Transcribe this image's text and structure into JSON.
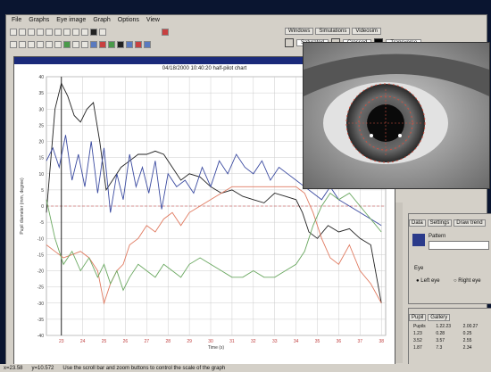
{
  "menu": [
    "File",
    "Graphs",
    "Eye image",
    "Graph",
    "Options",
    "View"
  ],
  "tabs": [
    "Windows",
    "Simulations",
    "Videosim"
  ],
  "swatches": [
    {
      "label": "Saturated",
      "color": "#ffffff"
    },
    {
      "label": "Crossed",
      "color": "#ffffff"
    },
    {
      "label": "Transverse",
      "color": "#000000"
    }
  ],
  "chart": {
    "header": "04/18/2000 10:40:20  half-pilot chart",
    "ylabel": "Pupil diameter (mm, degree)",
    "xlabel": "Time (s)"
  },
  "chart_data": {
    "type": "line",
    "ylim": [
      -40,
      40
    ],
    "yticks": [
      40,
      35,
      30,
      25,
      20,
      15,
      10,
      5,
      0,
      -5,
      -10,
      -15,
      -20,
      -25,
      -30,
      -35,
      -40
    ],
    "xticks": [
      "23",
      "24",
      "25",
      "26",
      "27",
      "28",
      "29",
      "30",
      "31",
      "32",
      "33",
      "34",
      "35",
      "36",
      "37",
      "38"
    ],
    "xrange": [
      22.3,
      38.2
    ],
    "series": [
      {
        "color": "#222222",
        "x": [
          22.3,
          22.7,
          23.0,
          23.3,
          23.6,
          23.9,
          24.2,
          24.5,
          24.8,
          25.1,
          25.4,
          25.8,
          26.2,
          26.6,
          27.0,
          27.4,
          27.8,
          28.2,
          28.6,
          29.0,
          29.5,
          30.0,
          30.5,
          31.0,
          31.5,
          32.0,
          32.5,
          33.0,
          33.5,
          34.0,
          34.3,
          34.6,
          35.0,
          35.5,
          36.0,
          36.5,
          37.0,
          37.5,
          38.0
        ],
        "y": [
          -2,
          30,
          38,
          34,
          28,
          26,
          30,
          32,
          20,
          5,
          8,
          12,
          14,
          16,
          16,
          17,
          16,
          12,
          8,
          10,
          9,
          6,
          4,
          5,
          3,
          2,
          1,
          4,
          3,
          2,
          -2,
          -8,
          -10,
          -6,
          -8,
          -7,
          -10,
          -12,
          -30
        ]
      },
      {
        "color": "#3a4aa0",
        "x": [
          22.3,
          22.6,
          22.9,
          23.2,
          23.5,
          23.8,
          24.1,
          24.4,
          24.7,
          25.0,
          25.3,
          25.6,
          25.9,
          26.2,
          26.5,
          26.8,
          27.1,
          27.4,
          27.7,
          28.0,
          28.4,
          28.8,
          29.2,
          29.6,
          30.0,
          30.4,
          30.8,
          31.2,
          31.6,
          32.0,
          32.4,
          32.8,
          33.2,
          33.6,
          34.0,
          34.4,
          34.8,
          35.2,
          35.6,
          36.0,
          36.5,
          37.0,
          37.5,
          38.0
        ],
        "y": [
          14,
          18,
          12,
          22,
          8,
          16,
          6,
          20,
          4,
          18,
          -2,
          10,
          2,
          16,
          6,
          12,
          4,
          14,
          -1,
          10,
          6,
          8,
          4,
          12,
          6,
          14,
          10,
          16,
          12,
          10,
          14,
          8,
          12,
          10,
          8,
          6,
          4,
          2,
          6,
          2,
          0,
          -2,
          -4,
          -6
        ]
      },
      {
        "color": "#e07a60",
        "x": [
          22.3,
          22.7,
          23.1,
          23.5,
          23.9,
          24.3,
          24.7,
          25.0,
          25.3,
          25.6,
          25.9,
          26.2,
          26.6,
          27.0,
          27.4,
          27.8,
          28.2,
          28.6,
          29.0,
          29.5,
          30.0,
          30.5,
          31.0,
          31.5,
          32.0,
          32.5,
          33.0,
          33.5,
          34.0,
          34.4,
          34.8,
          35.2,
          35.6,
          36.0,
          36.5,
          37.0,
          37.5,
          38.0
        ],
        "y": [
          -12,
          -14,
          -16,
          -15,
          -14,
          -16,
          -20,
          -30,
          -24,
          -20,
          -18,
          -12,
          -10,
          -6,
          -8,
          -4,
          -2,
          -6,
          -2,
          0,
          2,
          4,
          6,
          6,
          6,
          6,
          6,
          6,
          6,
          4,
          -2,
          -10,
          -16,
          -18,
          -12,
          -20,
          -24,
          -30
        ]
      },
      {
        "color": "#6aa860",
        "x": [
          22.3,
          22.7,
          23.1,
          23.5,
          23.9,
          24.3,
          24.7,
          25.0,
          25.3,
          25.6,
          25.9,
          26.2,
          26.6,
          27.0,
          27.4,
          27.8,
          28.2,
          28.6,
          29.0,
          29.5,
          30.0,
          30.5,
          31.0,
          31.5,
          32.0,
          32.5,
          33.0,
          33.5,
          34.0,
          34.4,
          34.8,
          35.2,
          35.6,
          36.0,
          36.5,
          37.0,
          37.5,
          38.0
        ],
        "y": [
          2,
          -10,
          -18,
          -14,
          -20,
          -16,
          -22,
          -18,
          -24,
          -20,
          -26,
          -22,
          -18,
          -20,
          -22,
          -18,
          -20,
          -22,
          -18,
          -16,
          -18,
          -20,
          -22,
          -22,
          -20,
          -22,
          -22,
          -20,
          -18,
          -14,
          -6,
          0,
          4,
          2,
          4,
          0,
          -4,
          -8
        ]
      }
    ],
    "reference_line": {
      "color": "#c84040",
      "y": 0
    }
  },
  "panel": {
    "tabs": [
      "Data",
      "Settings",
      "Draw trend"
    ],
    "fields": [
      "Pattern"
    ],
    "options": [
      "Left eye",
      "Right eye"
    ],
    "label": "Eye"
  },
  "panel2": {
    "tabs": [
      "Pupil",
      "Gallery"
    ],
    "rows": [
      [
        "Pupils",
        "1.22.23",
        "2.00.27"
      ],
      [
        "1.23",
        "0.28",
        "0.25"
      ],
      [
        "3.52",
        "3.57",
        "2.55"
      ],
      [
        "1.87",
        "7.3",
        "2.34"
      ]
    ]
  },
  "status": [
    "x=23.58",
    "y=10.572",
    "Use the scroll bar and zoom buttons to control the scale of the graph"
  ]
}
